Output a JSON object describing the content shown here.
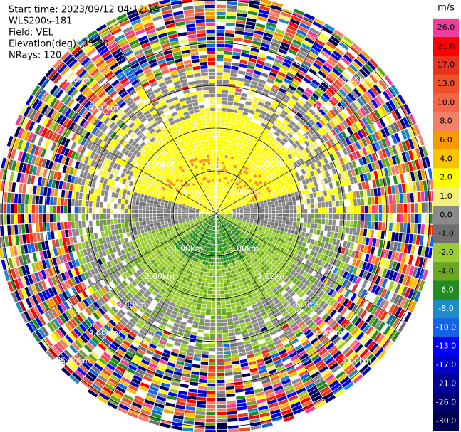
{
  "chart_data": {
    "type": "ppi",
    "header": [
      "Start time: 2023/09/12 04:12:14",
      "WLS200s-181",
      "Field: VEL",
      "Elevation(deg): 35.30",
      "NRays: 120"
    ],
    "range_rings": {
      "values": [
        1,
        2,
        3,
        4,
        5
      ],
      "labels": [
        "1.00km",
        "2.00km",
        "3.00km",
        "4.00km",
        "5.00km"
      ]
    },
    "colorbar": {
      "unit": "m/s",
      "ticks": [
        {
          "value": 26,
          "label": "26.0",
          "color": "#f03c9c"
        },
        {
          "value": 21,
          "label": "21.0",
          "color": "#ff0000"
        },
        {
          "value": 17,
          "label": "17.0",
          "color": "#e8321e"
        },
        {
          "value": 13,
          "label": "13.0",
          "color": "#f05028"
        },
        {
          "value": 10,
          "label": "10.0",
          "color": "#f46646"
        },
        {
          "value": 8,
          "label": "8.0",
          "color": "#f4806a"
        },
        {
          "value": 6,
          "label": "6.0",
          "color": "#f59a00"
        },
        {
          "value": 4,
          "label": "4.0",
          "color": "#f8c400"
        },
        {
          "value": 2,
          "label": "2.0",
          "color": "#ffff00"
        },
        {
          "value": 1,
          "label": "1.0",
          "color": "#f2f07a"
        },
        {
          "value": 0,
          "label": "0.0",
          "color": "#8a8a8a"
        },
        {
          "value": -1,
          "label": "-1.0",
          "color": "#707070"
        },
        {
          "value": -2,
          "label": "-2.0",
          "color": "#9acd32"
        },
        {
          "value": -4,
          "label": "-4.0",
          "color": "#6aa820"
        },
        {
          "value": -6,
          "label": "-6.0",
          "color": "#228b22"
        },
        {
          "value": -8,
          "label": "-8.0",
          "color": "#1e8cc8"
        },
        {
          "value": -10,
          "label": "-10.0",
          "color": "#1464e6"
        },
        {
          "value": -13,
          "label": "-13.0",
          "color": "#0000ff"
        },
        {
          "value": -17,
          "label": "-17.0",
          "color": "#0000c8"
        },
        {
          "value": -21,
          "label": "-21.0",
          "color": "#000096"
        },
        {
          "value": -26,
          "label": "-26.0",
          "color": "#00006e"
        },
        {
          "value": -30,
          "label": "-30.0",
          "color": "#000050"
        }
      ]
    }
  }
}
